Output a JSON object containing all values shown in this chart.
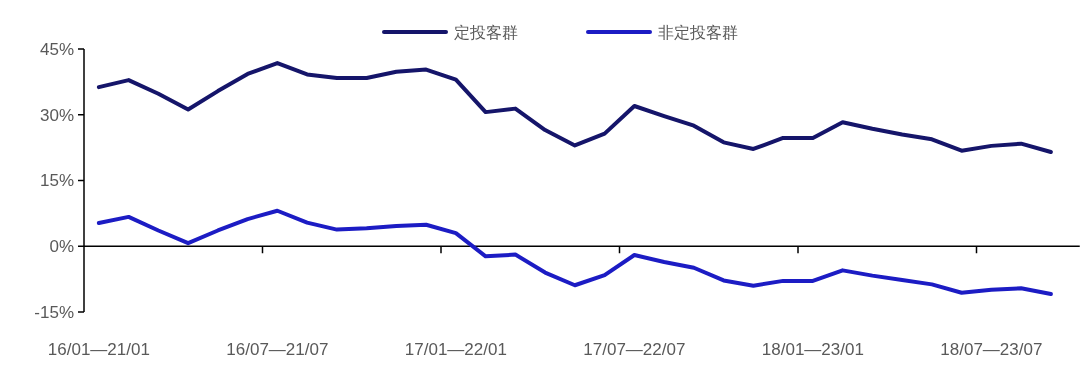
{
  "chart_data": {
    "type": "line",
    "categories": [
      "16/01—21/01",
      null,
      null,
      null,
      null,
      null,
      "16/07—21/07",
      null,
      null,
      null,
      null,
      null,
      "17/01—22/01",
      null,
      null,
      null,
      null,
      null,
      "17/07—22/07",
      null,
      null,
      null,
      null,
      null,
      "18/01—23/01",
      null,
      null,
      null,
      null,
      null,
      "18/07—23/07",
      null,
      null
    ],
    "series": [
      {
        "name": "定投客群",
        "color": "#15156a",
        "values": [
          36.3,
          37.9,
          34.8,
          31.2,
          35.4,
          39.3,
          41.8,
          39.2,
          38.4,
          38.4,
          39.8,
          40.3,
          38.0,
          30.6,
          31.4,
          26.5,
          23.0,
          25.7,
          32.0,
          29.7,
          27.5,
          23.7,
          22.2,
          24.7,
          24.7,
          28.3,
          26.8,
          25.5,
          24.4,
          21.8,
          22.9,
          23.4,
          21.5
        ]
      },
      {
        "name": "非定投客群",
        "color": "#1c1cc4",
        "values": [
          5.3,
          6.7,
          3.6,
          0.7,
          3.6,
          6.2,
          8.1,
          5.4,
          3.8,
          4.1,
          4.6,
          4.9,
          3.0,
          -2.3,
          -1.9,
          -6.0,
          -8.9,
          -6.6,
          -2.0,
          -3.6,
          -4.9,
          -7.8,
          -9.0,
          -7.9,
          -7.9,
          -5.5,
          -6.7,
          -7.7,
          -8.7,
          -10.6,
          -9.9,
          -9.6,
          -10.9
        ]
      }
    ],
    "ylim": [
      -15,
      45
    ],
    "yticks": [
      {
        "value": -15,
        "label": "-15%"
      },
      {
        "value": 0,
        "label": "0%"
      },
      {
        "value": 15,
        "label": "15%"
      },
      {
        "value": 30,
        "label": "30%"
      },
      {
        "value": 45,
        "label": "45%"
      }
    ],
    "legend": "top",
    "marker": "none",
    "line_style": "solid"
  }
}
